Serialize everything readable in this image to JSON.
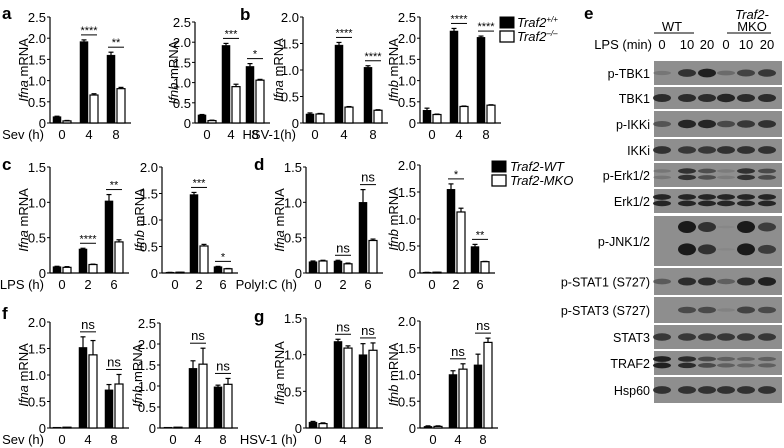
{
  "colors": {
    "wt": "#000000",
    "ko": "#ffffff",
    "stroke": "#000000",
    "blot_bg": "#8e8e8e",
    "band": "#1a1a1a"
  },
  "legends": {
    "ab": {
      "items": [
        {
          "label": "Traf2",
          "sup": "+/+",
          "fill": "black"
        },
        {
          "label": "Traf2",
          "sup": "–/–",
          "fill": "white"
        }
      ]
    },
    "cd": {
      "items": [
        {
          "label": "Traf2-WT",
          "fill": "black"
        },
        {
          "label": "Traf2-MKO",
          "fill": "white"
        }
      ]
    }
  },
  "chart_data": [
    {
      "panel": "a",
      "type": "bar",
      "title": "",
      "ylabel": "Ifna mRNA",
      "xlabel": "Sev (h)",
      "categories": [
        "0",
        "4",
        "8"
      ],
      "ylim": [
        0,
        2.5
      ],
      "yticks": [
        "0",
        "0.5",
        "1.0",
        "1.5",
        "2.0",
        "2.5"
      ],
      "series": [
        {
          "name": "Traf2+/+",
          "values": [
            0.15,
            1.92,
            1.6
          ],
          "errors": [
            0.01,
            0.04,
            0.07
          ]
        },
        {
          "name": "Traf2-/-",
          "values": [
            0.05,
            0.66,
            0.81
          ],
          "errors": [
            0.01,
            0.03,
            0.03
          ]
        }
      ],
      "significance": [
        "",
        "****",
        "**"
      ]
    },
    {
      "panel": "a",
      "type": "bar",
      "ylabel": "Ifnb mRNA",
      "xlabel": "",
      "categories": [
        "0",
        "4",
        "8"
      ],
      "ylim": [
        0,
        2.5
      ],
      "yticks": [
        "0",
        "0.5",
        "1.0",
        "1.5",
        "2.0",
        "2.5"
      ],
      "series": [
        {
          "name": "Traf2+/+",
          "values": [
            0.2,
            1.92,
            1.4
          ],
          "errors": [
            0.01,
            0.05,
            0.07
          ]
        },
        {
          "name": "Traf2-/-",
          "values": [
            0.06,
            0.9,
            1.06
          ],
          "errors": [
            0.01,
            0.06,
            0.02
          ]
        }
      ],
      "significance": [
        "",
        "***",
        "*"
      ]
    },
    {
      "panel": "b",
      "type": "bar",
      "ylabel": "Ifna mRNA",
      "xlabel": "HSV-1(h)",
      "categories": [
        "0",
        "4",
        "8"
      ],
      "ylim": [
        0,
        2.0
      ],
      "yticks": [
        "0",
        "0.5",
        "1.0",
        "1.5",
        "2.0"
      ],
      "series": [
        {
          "name": "Traf2+/+",
          "values": [
            0.17,
            1.47,
            1.05
          ],
          "errors": [
            0.02,
            0.05,
            0.03
          ]
        },
        {
          "name": "Traf2-/-",
          "values": [
            0.17,
            0.3,
            0.24
          ],
          "errors": [
            0.01,
            0.01,
            0.01
          ]
        }
      ],
      "significance": [
        "",
        "****",
        "****"
      ]
    },
    {
      "panel": "b",
      "type": "bar",
      "ylabel": "Ifnb mRNA",
      "xlabel": "",
      "categories": [
        "0",
        "4",
        "8"
      ],
      "ylim": [
        0,
        2.5
      ],
      "yticks": [
        "0",
        "0.5",
        "1.0",
        "1.5",
        "2.0",
        "2.5"
      ],
      "series": [
        {
          "name": "Traf2+/+",
          "values": [
            0.3,
            2.17,
            2.02
          ],
          "errors": [
            0.05,
            0.06,
            0.03
          ]
        },
        {
          "name": "Traf2-/-",
          "values": [
            0.2,
            0.39,
            0.42
          ],
          "errors": [
            0.01,
            0.01,
            0.01
          ]
        }
      ],
      "significance": [
        "",
        "****",
        "****"
      ]
    },
    {
      "panel": "c",
      "type": "bar",
      "ylabel": "Ifna mRNA",
      "xlabel": "LPS (h)",
      "categories": [
        "0",
        "2",
        "6"
      ],
      "ylim": [
        0,
        1.5
      ],
      "yticks": [
        "0",
        "0.5",
        "1.0",
        "1.5"
      ],
      "series": [
        {
          "name": "Traf2-WT",
          "values": [
            0.09,
            0.34,
            1.02
          ],
          "errors": [
            0.005,
            0.01,
            0.09
          ]
        },
        {
          "name": "Traf2-MKO",
          "values": [
            0.08,
            0.12,
            0.44
          ],
          "errors": [
            0.01,
            0.005,
            0.03
          ]
        }
      ],
      "significance": [
        "",
        "****",
        "**"
      ]
    },
    {
      "panel": "c",
      "type": "bar",
      "ylabel": "Ifnb mRNA",
      "xlabel": "",
      "categories": [
        "0",
        "2",
        "6"
      ],
      "ylim": [
        0,
        2.0
      ],
      "yticks": [
        "0",
        "0.5",
        "1.0",
        "1.5",
        "2.0"
      ],
      "series": [
        {
          "name": "Traf2-WT",
          "values": [
            0.01,
            1.48,
            0.12
          ],
          "errors": [
            0.002,
            0.04,
            0.005
          ]
        },
        {
          "name": "Traf2-MKO",
          "values": [
            0.01,
            0.51,
            0.08
          ],
          "errors": [
            0.002,
            0.03,
            0.005
          ]
        }
      ],
      "significance": [
        "",
        "***",
        "*"
      ]
    },
    {
      "panel": "d",
      "type": "bar",
      "ylabel": "Ifna mRNA",
      "xlabel": "PolyI:C (h)",
      "categories": [
        "0",
        "2",
        "6"
      ],
      "ylim": [
        0,
        1.5
      ],
      "yticks": [
        "0",
        "0.5",
        "1.0",
        "1.5"
      ],
      "series": [
        {
          "name": "Traf2-WT",
          "values": [
            0.16,
            0.17,
            1.0
          ],
          "errors": [
            0.01,
            0.01,
            0.18
          ]
        },
        {
          "name": "Traf2-MKO",
          "values": [
            0.17,
            0.13,
            0.46
          ],
          "errors": [
            0.01,
            0.01,
            0.02
          ]
        }
      ],
      "significance": [
        "",
        "ns",
        "ns"
      ]
    },
    {
      "panel": "d",
      "type": "bar",
      "ylabel": "Ifnb mRNA",
      "xlabel": "",
      "categories": [
        "0",
        "2",
        "6"
      ],
      "ylim": [
        0,
        2.0
      ],
      "yticks": [
        "0",
        "0.5",
        "1.0",
        "1.5",
        "2.0"
      ],
      "series": [
        {
          "name": "Traf2-WT",
          "values": [
            0.01,
            1.55,
            0.49
          ],
          "errors": [
            0.002,
            0.1,
            0.04
          ]
        },
        {
          "name": "Traf2-MKO",
          "values": [
            0.01,
            1.13,
            0.21
          ],
          "errors": [
            0.002,
            0.07,
            0.005
          ]
        }
      ],
      "significance": [
        "",
        "*",
        "**"
      ]
    },
    {
      "panel": "f",
      "type": "bar",
      "ylabel": "Ifna mRNA",
      "xlabel": "Sev (h)",
      "categories": [
        "0",
        "4",
        "8"
      ],
      "ylim": [
        0,
        2.0
      ],
      "yticks": [
        "0",
        "0.5",
        "1.0",
        "1.5",
        "2.0"
      ],
      "series": [
        {
          "name": "Traf2-WT",
          "values": [
            0.0,
            1.52,
            0.72
          ],
          "errors": [
            0,
            0.2,
            0.1
          ]
        },
        {
          "name": "Traf2-MKO",
          "values": [
            0.0,
            1.38,
            0.83
          ],
          "errors": [
            0,
            0.27,
            0.18
          ]
        }
      ],
      "significance": [
        "",
        "ns",
        "ns"
      ]
    },
    {
      "panel": "f",
      "type": "bar",
      "ylabel": "Ifnb mRNA",
      "xlabel": "",
      "categories": [
        "0",
        "4",
        "8"
      ],
      "ylim": [
        0,
        2.5
      ],
      "yticks": [
        "0",
        "0.5",
        "1.0",
        "1.5",
        "2.0",
        "2.5"
      ],
      "series": [
        {
          "name": "Traf2-WT",
          "values": [
            0.0,
            1.42,
            0.98
          ],
          "errors": [
            0,
            0.18,
            0.04
          ]
        },
        {
          "name": "Traf2-MKO",
          "values": [
            0.0,
            1.52,
            1.04
          ],
          "errors": [
            0,
            0.38,
            0.14
          ]
        }
      ],
      "significance": [
        "",
        "ns",
        "ns"
      ]
    },
    {
      "panel": "g",
      "type": "bar",
      "ylabel": "Ifna mRNA",
      "xlabel": "HSV-1 (h)",
      "categories": [
        "0",
        "4",
        "8"
      ],
      "ylim": [
        0,
        1.5
      ],
      "yticks": [
        "0",
        "0.5",
        "1.0",
        "1.5"
      ],
      "series": [
        {
          "name": "Traf2-WT",
          "values": [
            0.08,
            1.18,
            1.0
          ],
          "errors": [
            0.01,
            0.03,
            0.15
          ]
        },
        {
          "name": "Traf2-MKO",
          "values": [
            0.06,
            1.09,
            1.06
          ],
          "errors": [
            0.01,
            0.03,
            0.1
          ]
        }
      ],
      "significance": [
        "",
        "ns",
        "ns"
      ]
    },
    {
      "panel": "g",
      "type": "bar",
      "ylabel": "Ifnb mRNA",
      "xlabel": "",
      "categories": [
        "0",
        "4",
        "8"
      ],
      "ylim": [
        0,
        2.0
      ],
      "yticks": [
        "0",
        "0.5",
        "1.0",
        "1.5",
        "2.0"
      ],
      "series": [
        {
          "name": "Traf2-WT",
          "values": [
            0.03,
            1.0,
            1.18
          ],
          "errors": [
            0.01,
            0.07,
            0.2
          ]
        },
        {
          "name": "Traf2-MKO",
          "values": [
            0.03,
            1.1,
            1.6
          ],
          "errors": [
            0.01,
            0.1,
            0.08
          ]
        }
      ],
      "significance": [
        "",
        "ns",
        "ns"
      ]
    }
  ],
  "blot": {
    "panel": "e",
    "group_labels": [
      "WT",
      "Traf2-\nMKO"
    ],
    "group_label_wt": "WT",
    "group_label_mko_line1": "Traf2-",
    "group_label_mko_line2": "MKO",
    "time_label": "LPS (min)",
    "lanes": [
      "0",
      "10",
      "20",
      "0",
      "10",
      "20"
    ],
    "rows": [
      {
        "label": "p-TBK1",
        "intensity": [
          0.2,
          0.8,
          0.95,
          0.3,
          0.65,
          0.75
        ]
      },
      {
        "label": "TBK1",
        "intensity": [
          0.85,
          0.85,
          0.85,
          0.9,
          0.85,
          0.85
        ]
      },
      {
        "label": "p-IKKi",
        "intensity": [
          0.5,
          0.9,
          0.9,
          0.6,
          0.75,
          0.8
        ]
      },
      {
        "label": "IKKi",
        "intensity": [
          0.8,
          0.75,
          0.75,
          0.8,
          0.8,
          0.8
        ]
      },
      {
        "label": "p-Erk1/2",
        "intensity": [
          0.2,
          0.8,
          0.55,
          0.15,
          0.8,
          0.6
        ]
      },
      {
        "label": "Erk1/2",
        "intensity": [
          0.9,
          0.9,
          0.9,
          0.9,
          0.9,
          0.9
        ]
      },
      {
        "label": "p-JNK1/2",
        "intensity": [
          0.0,
          1.0,
          0.8,
          0.05,
          1.0,
          0.7
        ]
      },
      {
        "label": "p-STAT1 (S727)",
        "intensity": [
          0.45,
          0.85,
          0.85,
          0.4,
          0.85,
          0.95
        ]
      },
      {
        "label": "p-STAT3 (S727)",
        "intensity": [
          0.0,
          0.6,
          0.6,
          0.1,
          0.65,
          0.6
        ]
      },
      {
        "label": "STAT3",
        "intensity": [
          0.75,
          0.75,
          0.75,
          0.75,
          0.75,
          0.75
        ]
      },
      {
        "label": "TRAF2",
        "intensity": [
          0.95,
          0.85,
          0.6,
          0.4,
          0.35,
          0.4
        ]
      },
      {
        "label": "Hsp60",
        "intensity": [
          0.8,
          0.8,
          0.8,
          0.8,
          0.8,
          0.8
        ]
      }
    ]
  },
  "panel_letters": {
    "a": "a",
    "b": "b",
    "c": "c",
    "d": "d",
    "e": "e",
    "f": "f",
    "g": "g"
  }
}
